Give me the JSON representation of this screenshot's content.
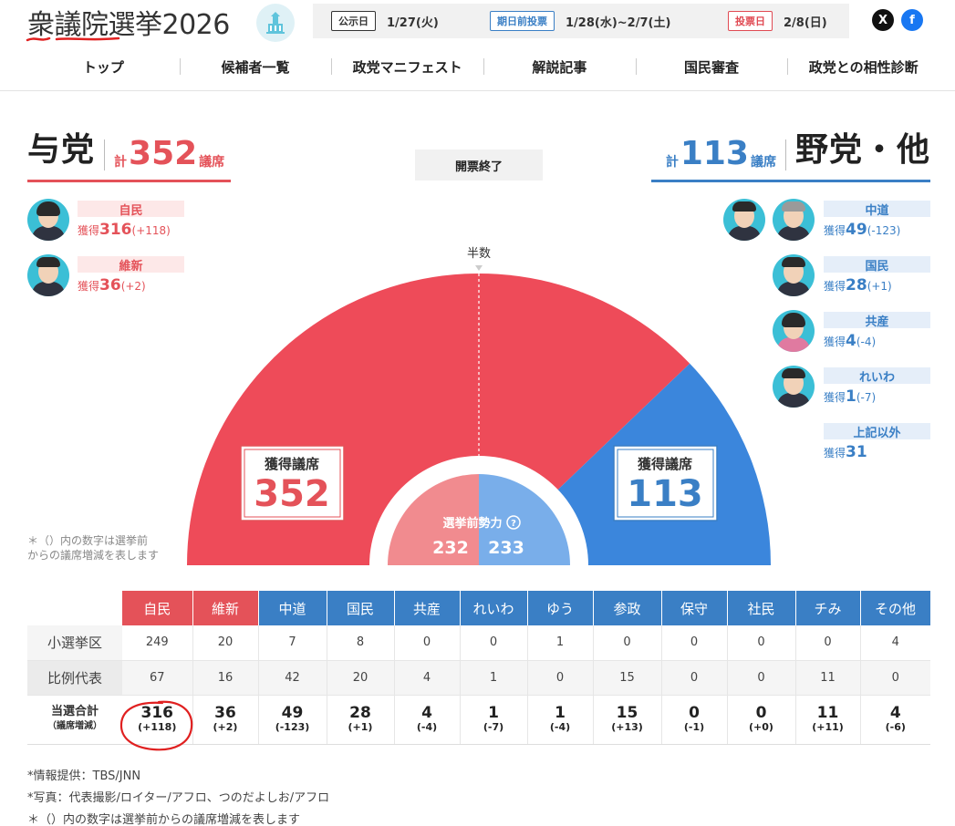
{
  "header": {
    "title": "衆議院選挙2026",
    "schedule": [
      {
        "tag": "公示日",
        "date": "1/27(火)"
      },
      {
        "tag": "期日前投票",
        "date": "1/28(水)~2/7(土)"
      },
      {
        "tag": "投票日",
        "date": "2/8(日)"
      }
    ],
    "social": {
      "x": "X",
      "facebook": "f"
    }
  },
  "nav": [
    "トップ",
    "候補者一覧",
    "政党マニフェスト",
    "解説記事",
    "国民審査",
    "政党との相性診断"
  ],
  "ruling": {
    "name": "与党",
    "kei": "計",
    "seats": "352",
    "unit": "議席"
  },
  "opposition": {
    "name": "野党・他",
    "kei": "計",
    "seats": "113",
    "unit": "議席"
  },
  "status": "開票終了",
  "parties_left": [
    {
      "name": "自民",
      "label": "獲得",
      "seats": "316",
      "diff": "(+118)"
    },
    {
      "name": "維新",
      "label": "獲得",
      "seats": "36",
      "diff": "(+2)"
    }
  ],
  "parties_right": [
    {
      "name": "中道",
      "label": "獲得",
      "seats": "49",
      "diff": "(-123)"
    },
    {
      "name": "国民",
      "label": "獲得",
      "seats": "28",
      "diff": "(+1)"
    },
    {
      "name": "共産",
      "label": "獲得",
      "seats": "4",
      "diff": "(-4)"
    },
    {
      "name": "れいわ",
      "label": "獲得",
      "seats": "1",
      "diff": "(-7)"
    },
    {
      "name": "上記以外",
      "label": "獲得",
      "seats": "31",
      "diff": ""
    }
  ],
  "chart_data": {
    "type": "pie",
    "majority_label": "半数",
    "total_seats": 465,
    "segments": [
      {
        "name": "与党",
        "seats": 352
      },
      {
        "name": "野党・他",
        "seats": 113
      }
    ],
    "box_left": {
      "label": "獲得議席",
      "value": "352"
    },
    "box_right": {
      "label": "獲得議席",
      "value": "113"
    },
    "pre_election": {
      "label": "選挙前勢力",
      "left": "232",
      "right": "233"
    }
  },
  "side_note": [
    "＊（）内の数字は選挙前",
    "からの議席増減を表します"
  ],
  "table": {
    "headers": [
      "自民",
      "維新",
      "中道",
      "国民",
      "共産",
      "れいわ",
      "ゆう",
      "参政",
      "保守",
      "社民",
      "チみ",
      "その他"
    ],
    "row_labels": [
      "小選挙区",
      "比例代表"
    ],
    "total_label": "当選合計",
    "total_sub": "（議席増減）",
    "single": [
      "249",
      "20",
      "7",
      "8",
      "0",
      "0",
      "1",
      "0",
      "0",
      "0",
      "0",
      "4"
    ],
    "pr": [
      "67",
      "16",
      "42",
      "20",
      "4",
      "1",
      "0",
      "15",
      "0",
      "0",
      "11",
      "0"
    ],
    "total": [
      "316",
      "36",
      "49",
      "28",
      "4",
      "1",
      "1",
      "15",
      "0",
      "0",
      "11",
      "4"
    ],
    "diff": [
      "(+118)",
      "(+2)",
      "(-123)",
      "(+1)",
      "(-4)",
      "(-7)",
      "(-4)",
      "(+13)",
      "(-1)",
      "(+0)",
      "(+11)",
      "(-6)"
    ]
  },
  "footer": [
    "*情報提供：TBS/JNN",
    "*写真：代表撮影/ロイター/アフロ、つのだよしお/アフロ",
    "＊（）内の数字は選挙前からの議席増減を表します"
  ],
  "colors": {
    "ruling": "#e45259",
    "opposition": "#3a7fc5"
  }
}
